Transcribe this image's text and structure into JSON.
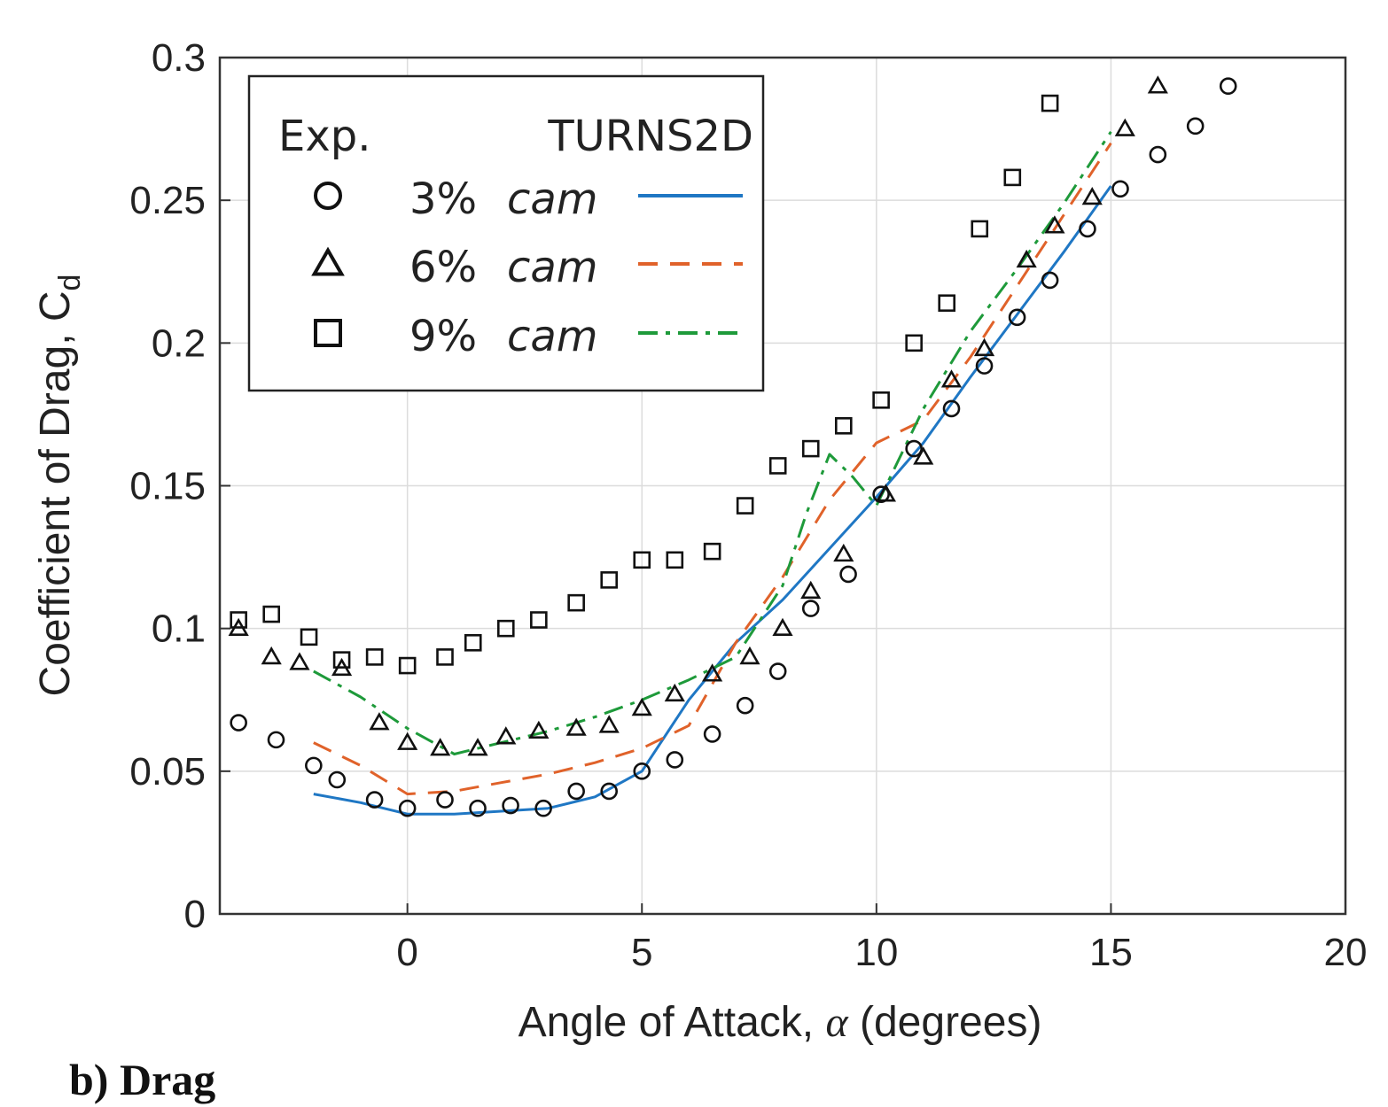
{
  "caption": "b) Drag",
  "chart_data": {
    "type": "scatter",
    "xlabel_prefix": "Angle of Attack, ",
    "xlabel_symbol": "α",
    "xlabel_suffix": " (degrees)",
    "ylabel_main": "Coefficient of Drag, C",
    "ylabel_sub": "d",
    "xlim": [
      -4,
      20
    ],
    "ylim": [
      0,
      0.3
    ],
    "xticks": [
      0,
      5,
      10,
      15,
      20
    ],
    "yticks": [
      0,
      0.05,
      0.1,
      0.15,
      0.2,
      0.25,
      0.3
    ],
    "ytick_labels": [
      "0",
      "0.05",
      "0.1",
      "0.15",
      "0.2",
      "0.25",
      "0.3"
    ],
    "grid": true,
    "legend": {
      "placement": "top-left",
      "header_exp": "Exp.",
      "header_sim": "TURNS2D",
      "entries": [
        {
          "pct": "3%",
          "word": "cam",
          "marker": "circle",
          "line": "solid",
          "color": "#1f77c4"
        },
        {
          "pct": "6%",
          "word": "cam",
          "marker": "triangle",
          "line": "dashed",
          "color": "#e0622a"
        },
        {
          "pct": "9%",
          "word": "cam",
          "marker": "square",
          "line": "dashdot",
          "color": "#1e9a3a"
        }
      ]
    },
    "experimental": [
      {
        "marker": "circle",
        "x": [
          -3.6,
          -2.8,
          -2.0,
          -1.5,
          -0.7,
          0.0,
          0.8,
          1.5,
          2.2,
          2.9,
          3.6,
          4.3,
          5.0,
          5.7,
          6.5,
          7.2,
          7.9,
          8.6,
          9.4,
          10.1,
          10.8,
          11.6,
          12.3,
          13.0,
          13.7,
          14.5,
          15.2,
          16.0,
          16.8,
          17.5
        ],
        "y": [
          0.067,
          0.061,
          0.052,
          0.047,
          0.04,
          0.037,
          0.04,
          0.037,
          0.038,
          0.037,
          0.043,
          0.043,
          0.05,
          0.054,
          0.063,
          0.073,
          0.085,
          0.107,
          0.119,
          0.147,
          0.163,
          0.177,
          0.192,
          0.209,
          0.222,
          0.24,
          0.254,
          0.266,
          0.276,
          0.29
        ]
      },
      {
        "marker": "triangle",
        "x": [
          -3.6,
          -2.9,
          -2.3,
          -1.4,
          -0.6,
          0.0,
          0.7,
          1.5,
          2.1,
          2.8,
          3.6,
          4.3,
          5.0,
          5.7,
          6.5,
          7.3,
          8.0,
          8.6,
          9.3,
          10.2,
          11.0,
          11.6,
          12.3,
          13.2,
          13.8,
          14.6,
          15.3,
          16.0
        ],
        "y": [
          0.1,
          0.09,
          0.088,
          0.086,
          0.067,
          0.06,
          0.058,
          0.058,
          0.062,
          0.064,
          0.065,
          0.066,
          0.072,
          0.077,
          0.084,
          0.09,
          0.1,
          0.113,
          0.126,
          0.147,
          0.16,
          0.187,
          0.198,
          0.229,
          0.241,
          0.251,
          0.275,
          0.29
        ]
      },
      {
        "marker": "square",
        "x": [
          -3.6,
          -2.9,
          -2.1,
          -1.4,
          -0.7,
          0.0,
          0.8,
          1.4,
          2.1,
          2.8,
          3.6,
          4.3,
          5.0,
          5.7,
          6.5,
          7.2,
          7.9,
          8.6,
          9.3,
          10.1,
          10.8,
          11.5,
          12.2,
          12.9,
          13.7
        ],
        "y": [
          0.103,
          0.105,
          0.097,
          0.089,
          0.09,
          0.087,
          0.09,
          0.095,
          0.1,
          0.103,
          0.109,
          0.117,
          0.124,
          0.124,
          0.127,
          0.143,
          0.157,
          0.163,
          0.171,
          0.18,
          0.2,
          0.214,
          0.24,
          0.258,
          0.284
        ]
      }
    ],
    "simulation": [
      {
        "line": "solid",
        "color": "#1f77c4",
        "x": [
          -2,
          -1,
          0,
          1,
          2,
          3,
          4,
          5,
          6,
          7,
          8,
          9,
          10,
          11,
          12,
          13,
          14,
          15
        ],
        "y": [
          0.042,
          0.039,
          0.035,
          0.035,
          0.036,
          0.037,
          0.041,
          0.05,
          0.075,
          0.095,
          0.11,
          0.128,
          0.146,
          0.165,
          0.188,
          0.21,
          0.232,
          0.255
        ]
      },
      {
        "line": "dashed",
        "color": "#e0622a",
        "x": [
          -2,
          -1,
          0,
          1,
          2,
          3,
          4,
          5,
          6,
          7,
          8,
          9,
          10,
          11,
          12,
          13,
          14,
          15
        ],
        "y": [
          0.06,
          0.052,
          0.042,
          0.043,
          0.046,
          0.049,
          0.053,
          0.058,
          0.066,
          0.095,
          0.118,
          0.145,
          0.165,
          0.173,
          0.195,
          0.22,
          0.245,
          0.27
        ]
      },
      {
        "line": "dashdot",
        "color": "#1e9a3a",
        "x": [
          -2,
          -1,
          0,
          1,
          2,
          3,
          4,
          5,
          6,
          7,
          8,
          8.5,
          9,
          9.5,
          10,
          11,
          12,
          13,
          14,
          15
        ],
        "y": [
          0.085,
          0.076,
          0.065,
          0.056,
          0.06,
          0.064,
          0.069,
          0.075,
          0.082,
          0.09,
          0.115,
          0.14,
          0.161,
          0.153,
          0.143,
          0.177,
          0.204,
          0.226,
          0.249,
          0.274
        ]
      }
    ]
  }
}
